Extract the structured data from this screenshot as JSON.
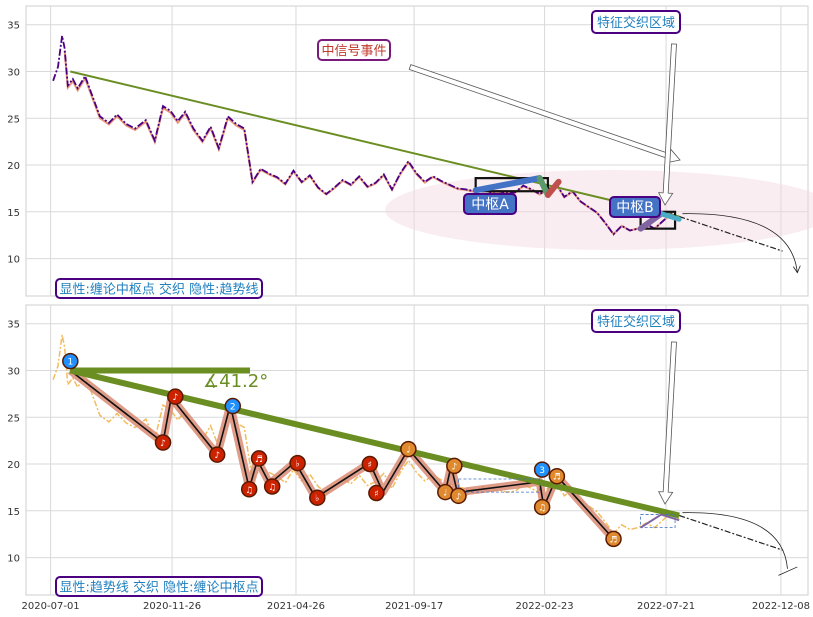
{
  "chart_data": [
    {
      "type": "line",
      "panel": "top",
      "ylim": [
        6,
        37
      ],
      "xlim": [
        "2020-06-01",
        "2023-01-10"
      ],
      "y_ticks": [
        10,
        15,
        20,
        25,
        30,
        35
      ],
      "x_ticks": [
        "2020-07-01",
        "2020-11-26",
        "2021-04-26",
        "2021-09-17",
        "2022-02-23",
        "2022-07-21",
        "2022-12-08"
      ],
      "grid": true,
      "series": [
        {
          "role": "price",
          "color": "#4b0082",
          "x": [
            "2020-07-04",
            "2020-07-10",
            "2020-07-15",
            "2020-07-18",
            "2020-07-22",
            "2020-07-28",
            "2020-08-03",
            "2020-08-12",
            "2020-08-20",
            "2020-08-30",
            "2020-09-10",
            "2020-09-20",
            "2020-10-01",
            "2020-10-12",
            "2020-10-25",
            "2020-11-05",
            "2020-11-15",
            "2020-11-24",
            "2020-12-03",
            "2020-12-12",
            "2020-12-22",
            "2021-01-02",
            "2021-01-12",
            "2021-01-22",
            "2021-02-02",
            "2021-02-12",
            "2021-02-22",
            "2021-03-04",
            "2021-03-14",
            "2021-03-24",
            "2021-04-03",
            "2021-04-13",
            "2021-04-23",
            "2021-05-03",
            "2021-05-13",
            "2021-05-23",
            "2021-06-02",
            "2021-06-12",
            "2021-06-22",
            "2021-07-02",
            "2021-07-12",
            "2021-07-22",
            "2021-08-01",
            "2021-08-11",
            "2021-08-21",
            "2021-08-31",
            "2021-09-10",
            "2021-09-20",
            "2021-09-30",
            "2021-10-10",
            "2021-10-20",
            "2021-10-30",
            "2021-11-09",
            "2021-11-19",
            "2021-11-29",
            "2021-12-09",
            "2021-12-19",
            "2021-12-29",
            "2022-01-08",
            "2022-01-18",
            "2022-01-28",
            "2022-02-07",
            "2022-02-17",
            "2022-02-27",
            "2022-03-09",
            "2022-03-19",
            "2022-03-29",
            "2022-04-08",
            "2022-04-18",
            "2022-04-28",
            "2022-05-08",
            "2022-05-18",
            "2022-05-28",
            "2022-06-07",
            "2022-06-17",
            "2022-06-27",
            "2022-07-07",
            "2022-07-17",
            "2022-07-27",
            "2022-08-06"
          ],
          "y": [
            29,
            30.5,
            33.8,
            32.5,
            28.5,
            29.2,
            28.2,
            29.5,
            27.6,
            25.2,
            24.5,
            25.4,
            24.4,
            23.9,
            24.8,
            22.6,
            26.3,
            25.8,
            24.7,
            25.7,
            23.9,
            22.6,
            24.1,
            21.8,
            25.2,
            24.4,
            23.9,
            18.2,
            19.6,
            19.1,
            18.7,
            18.0,
            19.4,
            18.2,
            18.9,
            17.6,
            16.9,
            17.6,
            18.4,
            17.9,
            18.8,
            17.7,
            18.1,
            19.0,
            17.4,
            19.1,
            20.4,
            19.1,
            18.2,
            18.8,
            18.3,
            17.9,
            17.5,
            17.4,
            17.2,
            17.6,
            17.1,
            17.2,
            17.0,
            17.1,
            17.8,
            17.4,
            16.9,
            17.4,
            18.0,
            16.6,
            17.2,
            16.1,
            15.5,
            14.9,
            13.8,
            12.6,
            13.5,
            13.0,
            13.2,
            13.7,
            13.2,
            14.0,
            14.8,
            14.1
          ]
        },
        {
          "role": "trend",
          "color": "#6b8e23",
          "x": [
            "2020-07-25",
            "2022-08-06"
          ],
          "y": [
            30,
            14.5
          ]
        },
        {
          "role": "projection",
          "color": "#222222",
          "x": [
            "2022-08-06",
            "2022-12-10"
          ],
          "y": [
            14.5,
            10.8
          ]
        }
      ],
      "annotations": {
        "signal_event": "中信号事件",
        "feature_zone": "特征交织区域",
        "pivot_a": "中枢A",
        "pivot_b": "中枢B",
        "caption": "显性:缠论中枢点 交织 隐性:趋势线"
      },
      "pivots": [
        {
          "name": "A",
          "x": [
            "2021-12-01",
            "2022-02-27"
          ],
          "y": [
            17.2,
            18.6
          ]
        },
        {
          "name": "B",
          "x": [
            "2022-06-20",
            "2022-08-01"
          ],
          "y": [
            13.2,
            15.0
          ]
        }
      ]
    },
    {
      "type": "line",
      "panel": "bottom",
      "ylim": [
        6,
        37
      ],
      "xlim": [
        "2020-06-01",
        "2023-01-10"
      ],
      "y_ticks": [
        10,
        15,
        20,
        25,
        30,
        35
      ],
      "x_ticks": [
        "2020-07-01",
        "2020-11-26",
        "2021-04-26",
        "2021-09-17",
        "2022-02-23",
        "2022-07-21",
        "2022-12-08"
      ],
      "grid": true,
      "angle_label": "∡41.2°",
      "annotations": {
        "feature_zone": "特征交织区域",
        "caption": "显性:趋势线 交织 隐性:缠论中枢点"
      },
      "strokes": {
        "x": [
          "2020-07-25",
          "2020-11-15",
          "2020-11-25",
          "2021-01-20",
          "2021-02-05",
          "2021-02-28",
          "2021-03-10",
          "2021-03-25",
          "2021-04-25",
          "2021-05-20",
          "2021-07-25",
          "2021-08-10",
          "2021-09-10",
          "2021-10-25",
          "2021-11-01",
          "2021-11-10",
          "2021-11-20",
          "2022-02-17",
          "2022-02-22",
          "2022-03-10",
          "2022-05-18"
        ],
        "y": [
          30,
          22.3,
          27.1,
          21,
          26.3,
          17.4,
          20.4,
          17.9,
          20.2,
          16.4,
          20.1,
          17,
          21.6,
          17,
          19.8,
          16.5,
          17.1,
          18.1,
          15.4,
          18.7,
          12
        ]
      },
      "markers": [
        {
          "x": "2020-07-25",
          "y": 31.0,
          "label": "1",
          "color": "#1e90ff"
        },
        {
          "x": "2021-02-08",
          "y": 26.2,
          "label": "2",
          "color": "#1e90ff"
        },
        {
          "x": "2022-02-20",
          "y": 19.4,
          "label": "3",
          "color": "#1e90ff"
        },
        {
          "x": "2020-11-15",
          "y": 22.3,
          "label": "♪",
          "color": "#cc2200"
        },
        {
          "x": "2020-11-30",
          "y": 27.2,
          "label": "♪",
          "color": "#cc2200"
        },
        {
          "x": "2021-01-20",
          "y": 21.0,
          "label": "♪",
          "color": "#cc2200"
        },
        {
          "x": "2021-02-28",
          "y": 17.3,
          "label": "♫",
          "color": "#cc2200"
        },
        {
          "x": "2021-03-12",
          "y": 20.6,
          "label": "♬",
          "color": "#cc2200"
        },
        {
          "x": "2021-03-28",
          "y": 17.6,
          "label": "♫",
          "color": "#cc2200"
        },
        {
          "x": "2021-04-28",
          "y": 20.1,
          "label": "♭",
          "color": "#cc2200"
        },
        {
          "x": "2021-05-22",
          "y": 16.4,
          "label": "♭",
          "color": "#cc2200"
        },
        {
          "x": "2021-07-25",
          "y": 20.0,
          "label": "♯",
          "color": "#cc2200"
        },
        {
          "x": "2021-08-02",
          "y": 16.9,
          "label": "♯",
          "color": "#cc2200"
        },
        {
          "x": "2021-09-10",
          "y": 21.6,
          "label": "♩",
          "color": "#e08a30"
        },
        {
          "x": "2021-10-25",
          "y": 17.0,
          "label": "♩",
          "color": "#e08a30"
        },
        {
          "x": "2021-11-05",
          "y": 19.8,
          "label": "♪",
          "color": "#e08a30"
        },
        {
          "x": "2021-11-10",
          "y": 16.6,
          "label": "♪",
          "color": "#e08a30"
        },
        {
          "x": "2022-02-20",
          "y": 15.4,
          "label": "♫",
          "color": "#e08a30"
        },
        {
          "x": "2022-03-10",
          "y": 18.7,
          "label": "♬",
          "color": "#e08a30"
        },
        {
          "x": "2022-05-18",
          "y": 12.0,
          "label": "♬",
          "color": "#e08a30"
        }
      ]
    }
  ]
}
